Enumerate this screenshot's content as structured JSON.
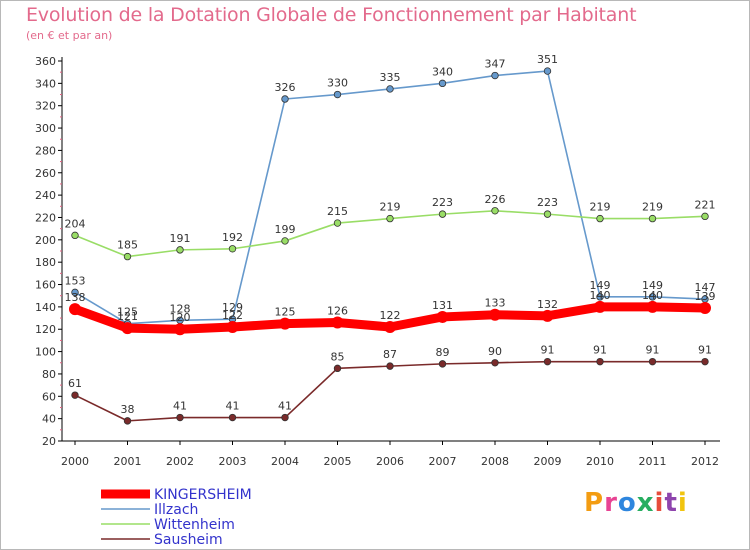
{
  "header": {
    "title": "Evolution de la Dotation Globale de Fonctionnement par Habitant",
    "subtitle": "(en € et par an)"
  },
  "logo": {
    "text": "Proxiti",
    "colors": [
      "#f39c12",
      "#e84393",
      "#2e86de",
      "#27ae60",
      "#e74c3c",
      "#8e44ad",
      "#f1c40f"
    ]
  },
  "chart_data": {
    "type": "line",
    "x": [
      "2000",
      "2001",
      "2002",
      "2003",
      "2004",
      "2005",
      "2006",
      "2007",
      "2008",
      "2009",
      "2010",
      "2011",
      "2012"
    ],
    "ylim": [
      20,
      360
    ],
    "yticks": [
      20,
      40,
      60,
      80,
      100,
      120,
      140,
      160,
      180,
      200,
      220,
      240,
      260,
      280,
      300,
      320,
      340,
      360
    ],
    "grid": false,
    "legend_position": "bottom-left",
    "series": [
      {
        "name": "KINGERSHEIM",
        "color": "#ff0000",
        "values": [
          138,
          121,
          120,
          122,
          125,
          126,
          122,
          131,
          133,
          132,
          140,
          140,
          139
        ],
        "labels": [
          "138",
          "121",
          "120",
          "122",
          "125",
          "126",
          "122",
          "131",
          "133",
          "132",
          "140",
          "140",
          "139"
        ]
      },
      {
        "name": "Illzach",
        "color": "#6699cc",
        "values": [
          153,
          125,
          128,
          129,
          326,
          330,
          335,
          340,
          347,
          351,
          149,
          149,
          147
        ],
        "labels": [
          "153",
          "125",
          "128",
          "129",
          "326",
          "330",
          "335",
          "340",
          "347",
          "351",
          "149",
          "149",
          "147"
        ]
      },
      {
        "name": "Wittenheim",
        "color": "#99dd66",
        "values": [
          204,
          185,
          191,
          192,
          199,
          215,
          219,
          223,
          226,
          223,
          219,
          219,
          221
        ],
        "labels": [
          "204",
          "185",
          "191",
          "192",
          "199",
          "215",
          "219",
          "223",
          "226",
          "223",
          "219",
          "219",
          "221"
        ]
      },
      {
        "name": "Sausheim",
        "color": "#7a2a2a",
        "values": [
          61,
          38,
          41,
          41,
          41,
          85,
          87,
          89,
          90,
          91,
          91,
          91,
          91
        ],
        "labels": [
          "61",
          "38",
          "41",
          "41",
          "41",
          "85",
          "87",
          "89",
          "90",
          "91",
          "91",
          "91",
          "91"
        ]
      }
    ]
  }
}
